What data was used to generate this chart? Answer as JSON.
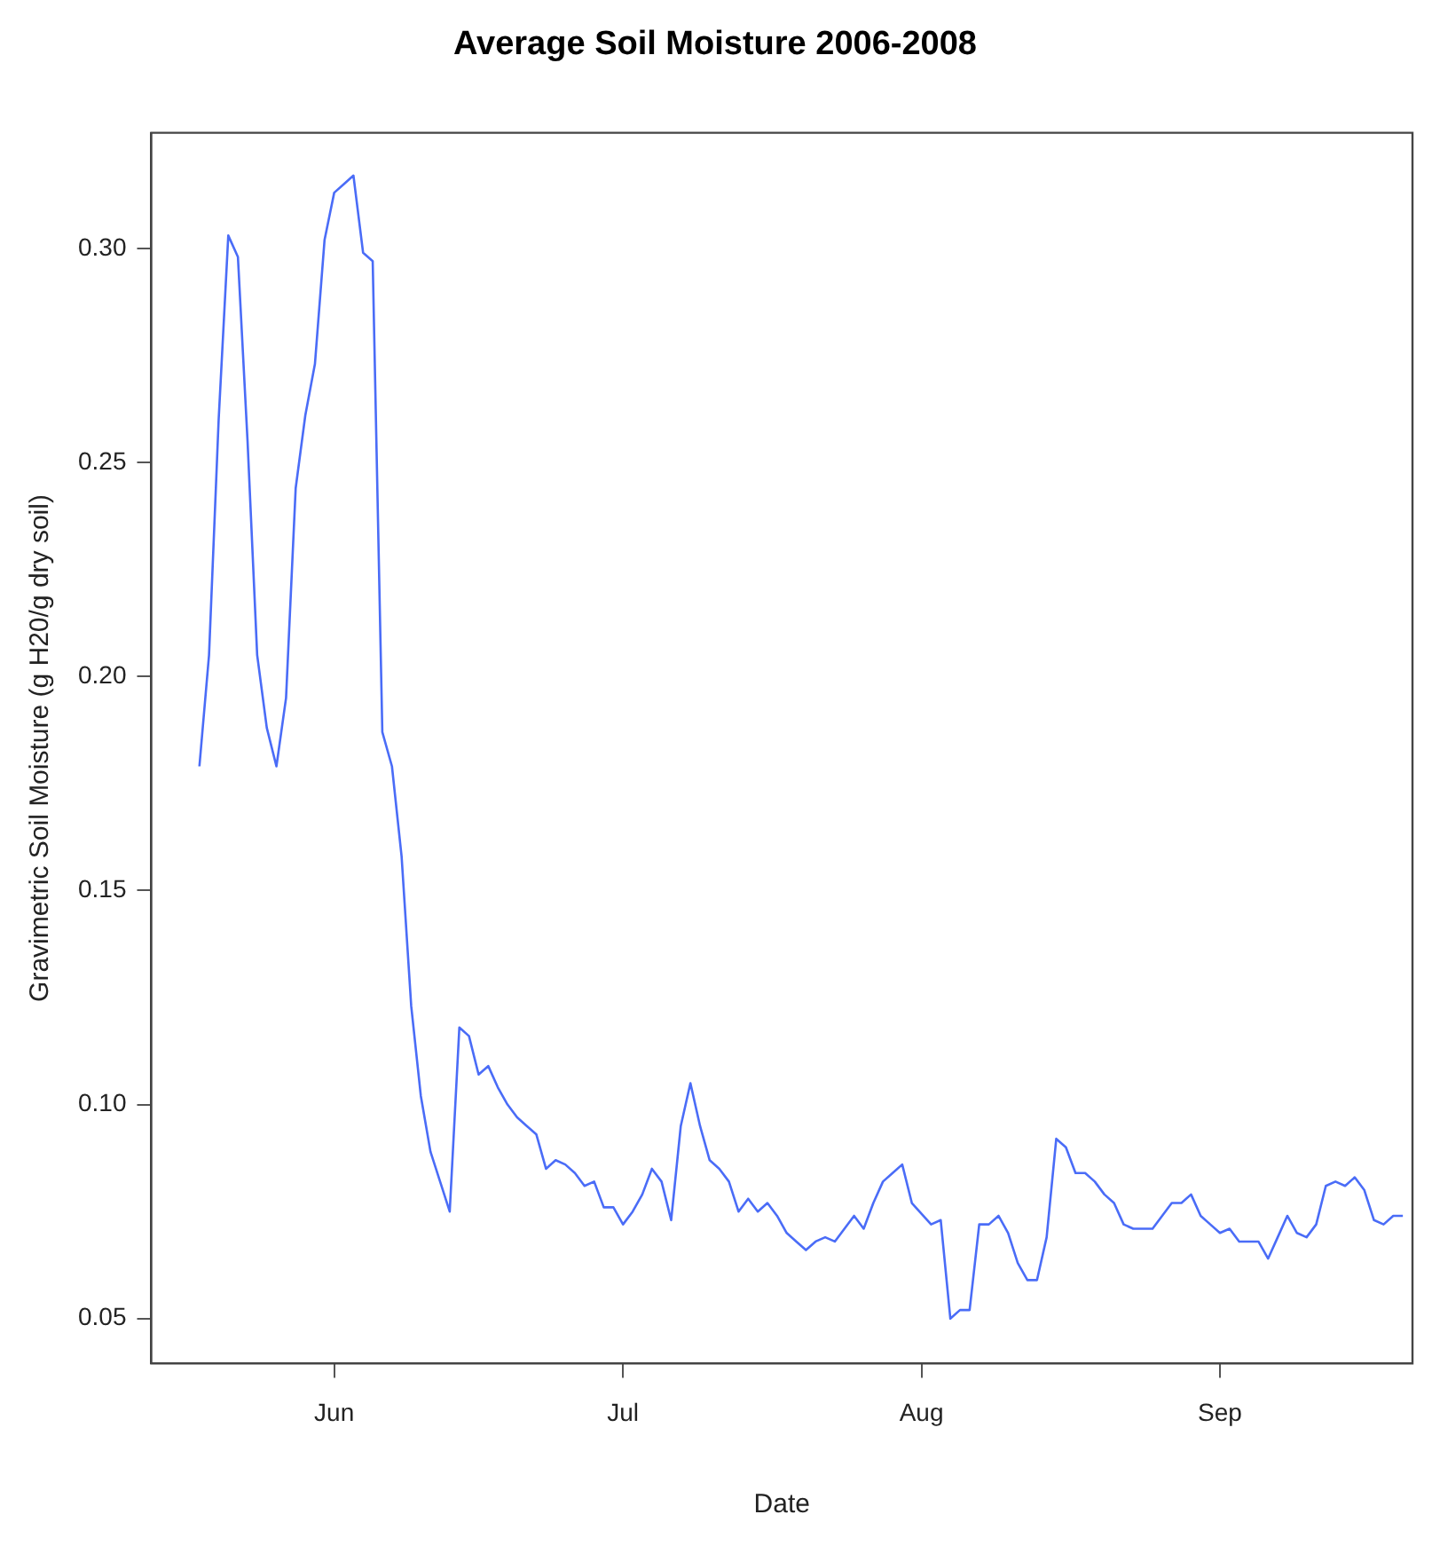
{
  "chart_data": {
    "type": "line",
    "title": "Average Soil Moisture 2006-2008",
    "xlabel": "Date",
    "ylabel": "Gravimetric Soil Moisture (g H20/g dry soil)",
    "x": [
      "--05-18",
      "--05-19",
      "--05-20",
      "--05-21",
      "--05-22",
      "--05-23",
      "--05-24",
      "--05-25",
      "--05-26",
      "--05-27",
      "--05-28",
      "--05-29",
      "--05-30",
      "--05-31",
      "--06-01",
      "--06-02",
      "--06-03",
      "--06-04",
      "--06-05",
      "--06-06",
      "--06-07",
      "--06-08",
      "--06-09",
      "--06-10",
      "--06-11",
      "--06-12",
      "--06-13",
      "--06-14",
      "--06-15",
      "--06-16",
      "--06-17",
      "--06-18",
      "--06-19",
      "--06-20",
      "--06-21",
      "--06-22",
      "--06-23",
      "--06-24",
      "--06-25",
      "--06-26",
      "--06-27",
      "--06-28",
      "--06-29",
      "--06-30",
      "--07-01",
      "--07-02",
      "--07-03",
      "--07-04",
      "--07-05",
      "--07-06",
      "--07-07",
      "--07-08",
      "--07-09",
      "--07-10",
      "--07-11",
      "--07-12",
      "--07-13",
      "--07-14",
      "--07-15",
      "--07-16",
      "--07-17",
      "--07-18",
      "--07-19",
      "--07-20",
      "--07-21",
      "--07-22",
      "--07-23",
      "--07-24",
      "--07-25",
      "--07-26",
      "--07-27",
      "--07-28",
      "--07-29",
      "--07-30",
      "--07-31",
      "--08-02",
      "--08-03",
      "--08-04",
      "--08-05",
      "--08-06",
      "--08-07",
      "--08-08",
      "--08-09",
      "--08-10",
      "--08-11",
      "--08-12",
      "--08-13",
      "--08-14",
      "--08-15",
      "--08-16",
      "--08-17",
      "--08-18",
      "--08-19",
      "--08-20",
      "--08-21",
      "--08-22",
      "--08-23",
      "--08-24",
      "--08-25",
      "--08-26",
      "--08-27",
      "--08-28",
      "--08-29",
      "--08-30",
      "--08-31",
      "--09-01",
      "--09-02",
      "--09-03",
      "--09-04",
      "--09-05",
      "--09-06",
      "--09-07",
      "--09-08",
      "--09-09",
      "--09-10",
      "--09-11",
      "--09-12",
      "--09-13",
      "--09-14",
      "--09-15",
      "--09-16",
      "--09-17",
      "--09-18",
      "--09-19",
      "--09-20"
    ],
    "series": [
      {
        "color": "#4a6cf7",
        "values": [
          0.179,
          0.205,
          0.26,
          0.303,
          0.298,
          0.255,
          0.205,
          0.188,
          0.179,
          0.195,
          0.244,
          0.261,
          0.273,
          0.302,
          0.313,
          0.315,
          0.317,
          0.299,
          0.297,
          0.187,
          0.179,
          0.158,
          0.123,
          0.102,
          0.089,
          0.082,
          0.075,
          0.118,
          0.116,
          0.107,
          0.109,
          0.104,
          0.1,
          0.097,
          0.095,
          0.093,
          0.085,
          0.087,
          0.086,
          0.084,
          0.081,
          0.082,
          0.076,
          0.076,
          0.072,
          0.075,
          0.079,
          0.085,
          0.082,
          0.073,
          0.095,
          0.105,
          0.095,
          0.087,
          0.085,
          0.082,
          0.075,
          0.078,
          0.075,
          0.077,
          0.074,
          0.07,
          0.068,
          0.066,
          0.068,
          0.069,
          0.068,
          0.071,
          0.074,
          0.071,
          0.077,
          0.082,
          0.084,
          0.086,
          0.077,
          0.072,
          0.073,
          0.05,
          0.052,
          0.052,
          0.072,
          0.072,
          0.074,
          0.07,
          0.063,
          0.059,
          0.059,
          0.069,
          0.092,
          0.09,
          0.084,
          0.084,
          0.082,
          0.079,
          0.077,
          0.072,
          0.071,
          0.071,
          0.071,
          0.074,
          0.077,
          0.077,
          0.079,
          0.074,
          0.072,
          0.07,
          0.071,
          0.068,
          0.068,
          0.068,
          0.064,
          0.069,
          0.074,
          0.07,
          0.069,
          0.072,
          0.081,
          0.082,
          0.081,
          0.083,
          0.08,
          0.073,
          0.072,
          0.074,
          0.074
        ]
      }
    ],
    "xlim": [
      "--05-13",
      "--09-21"
    ],
    "xticks": [
      {
        "value": "--06-01",
        "label": "Jun"
      },
      {
        "value": "--07-01",
        "label": "Jul"
      },
      {
        "value": "--08-01",
        "label": "Aug"
      },
      {
        "value": "--09-01",
        "label": "Sep"
      }
    ],
    "ylim": [
      0.0395,
      0.327
    ],
    "yticks": [
      0.05,
      {
        "value": 0.1,
        "label": "0.10"
      },
      0.15,
      {
        "value": 0.2,
        "label": "0.20"
      },
      0.25,
      {
        "value": 0.3,
        "label": "0.30"
      }
    ],
    "marker": "none",
    "line_style": "solid"
  }
}
